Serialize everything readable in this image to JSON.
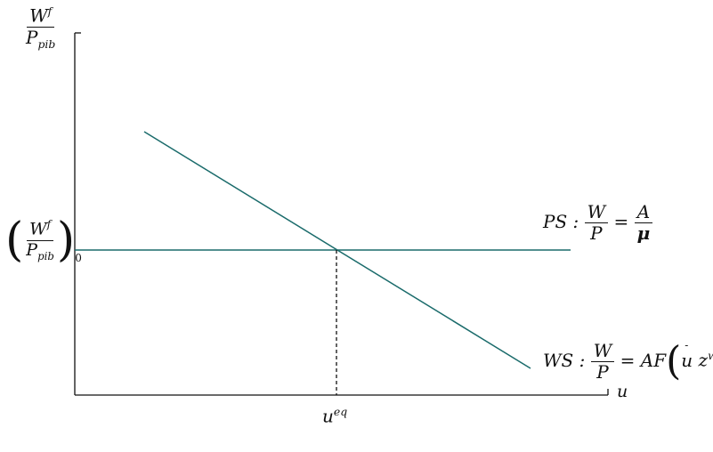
{
  "y_axis": {
    "label_numerator": "W",
    "label_numerator_sup": "f",
    "label_denominator": "P",
    "label_denominator_sub": "pib",
    "level_numerator": "W",
    "level_numerator_sup": "f",
    "level_denominator": "P",
    "level_denominator_sub": "pib",
    "level_subscript": "0"
  },
  "x_axis": {
    "label": "u",
    "eq_label": "u",
    "eq_label_sup": "eq"
  },
  "ps_curve": {
    "prefix": "PS :",
    "lhs_num": "W",
    "lhs_den": "P",
    "equals": "=",
    "rhs_num": "A",
    "rhs_den": "μ"
  },
  "ws_curve": {
    "prefix": "WS :",
    "lhs_num": "W",
    "lhs_den": "P",
    "equals": "=",
    "rhs_func": "AF",
    "arg1": "u",
    "arg1_sign": "-",
    "arg2": "z",
    "arg2_sup": "ws",
    "arg2_sign": "+"
  },
  "colors": {
    "curve": "#1a6b6b",
    "axis": "#111111",
    "guide": "#111111"
  }
}
